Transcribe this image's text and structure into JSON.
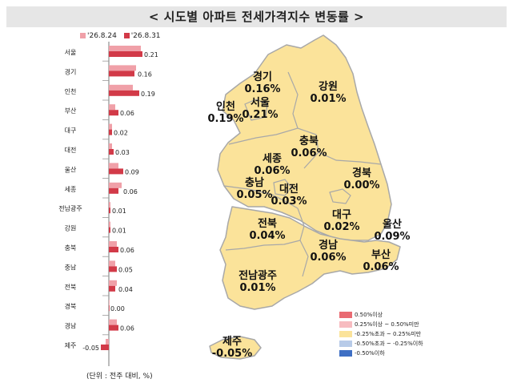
{
  "title": "< 시도별 아파트 전세가격지수 변동률 >",
  "unit_note": "(단위 : 전주 대비, %)",
  "colors": {
    "prev": "#f0a0a8",
    "curr": "#d23a48",
    "map_fill": "#fbe39a",
    "map_stroke": "#a8a8a8"
  },
  "chart_data": {
    "type": "bar",
    "orientation": "horizontal",
    "categories": [
      "서울",
      "경기",
      "인천",
      "부산",
      "대구",
      "대전",
      "울산",
      "세종",
      "전남광주",
      "강원",
      "충북",
      "충남",
      "전북",
      "경북",
      "경남",
      "제주"
    ],
    "series": [
      {
        "name": "'26.8.24",
        "values": [
          0.2,
          0.17,
          0.15,
          0.04,
          0.02,
          0.02,
          0.06,
          0.08,
          0.01,
          0.01,
          0.05,
          0.04,
          0.05,
          0.0,
          0.05,
          -0.02
        ]
      },
      {
        "name": "'26.8.31",
        "values": [
          0.21,
          0.16,
          0.19,
          0.06,
          0.02,
          0.03,
          0.09,
          0.06,
          0.01,
          0.01,
          0.06,
          0.05,
          0.04,
          0.0,
          0.06,
          -0.05
        ]
      }
    ],
    "data_labels": [
      "0.21",
      "0.16",
      "0.19",
      "0.06",
      "0.02",
      "0.03",
      "0.09",
      "0.06",
      "0.01",
      "0.01",
      "0.06",
      "0.05",
      "0.04",
      "0.00",
      "0.06",
      "-0.05"
    ],
    "xlim": [
      -0.05,
      0.25
    ],
    "legend_position": "top"
  },
  "map": {
    "regions": [
      {
        "name": "경기",
        "value": "0.16%"
      },
      {
        "name": "서울",
        "value": "0.21%"
      },
      {
        "name": "인천",
        "value": "0.19%"
      },
      {
        "name": "강원",
        "value": "0.01%"
      },
      {
        "name": "충북",
        "value": "0.06%"
      },
      {
        "name": "세종",
        "value": "0.06%"
      },
      {
        "name": "충남",
        "value": "0.05%"
      },
      {
        "name": "대전",
        "value": "0.03%"
      },
      {
        "name": "경북",
        "value": "0.00%"
      },
      {
        "name": "전북",
        "value": "0.04%"
      },
      {
        "name": "대구",
        "value": "0.02%"
      },
      {
        "name": "울산",
        "value": "0.09%"
      },
      {
        "name": "경남",
        "value": "0.06%"
      },
      {
        "name": "부산",
        "value": "0.06%"
      },
      {
        "name": "전남광주",
        "value": "0.01%"
      },
      {
        "name": "제주",
        "value": "-0.05%"
      }
    ],
    "legend": [
      {
        "label": "0.50%이상",
        "color": "#e96a72"
      },
      {
        "label": "0.25%이상 ~ 0.50%미만",
        "color": "#f7bcc0"
      },
      {
        "label": "-0.25%초과 ~ 0.25%미만",
        "color": "#fbe39a"
      },
      {
        "label": "-0.50%초과 ~ -0.25%이하",
        "color": "#b8cbe8"
      },
      {
        "label": "-0.50%이하",
        "color": "#3e6fc4"
      }
    ]
  }
}
